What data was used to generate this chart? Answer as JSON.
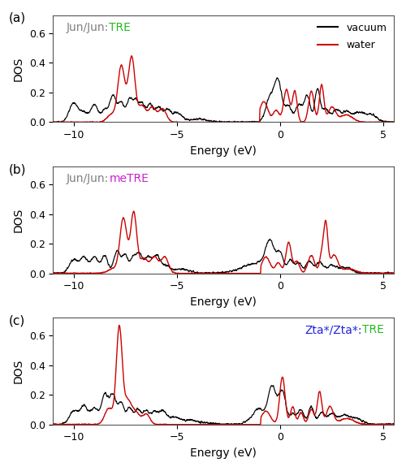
{
  "panels": [
    {
      "label": "(a)",
      "prefix": "Jun/Jun:",
      "prefix_color": "#808080",
      "highlight": "TRE",
      "highlight_color": "#22bb22",
      "title_loc": "left",
      "show_legend": true
    },
    {
      "label": "(b)",
      "prefix": "Jun/Jun:",
      "prefix_color": "#808080",
      "highlight": "meTRE",
      "highlight_color": "#cc22cc",
      "title_loc": "left",
      "show_legend": false
    },
    {
      "label": "(c)",
      "prefix": "Zta*/Zta*:",
      "prefix_color": "#2222dd",
      "highlight": "TRE",
      "highlight_color": "#22bb22",
      "title_loc": "right",
      "show_legend": false
    }
  ],
  "xlabel": "Energy (eV)",
  "ylabel": "DOS",
  "xlim": [
    -11,
    5.5
  ],
  "ylim": [
    0.0,
    0.72
  ],
  "yticks": [
    0.0,
    0.2,
    0.4,
    0.6
  ],
  "xticks": [
    -10,
    -5,
    0,
    5
  ],
  "vacuum_color": "#000000",
  "water_color": "#cc0000",
  "bg_color": "#ffffff"
}
